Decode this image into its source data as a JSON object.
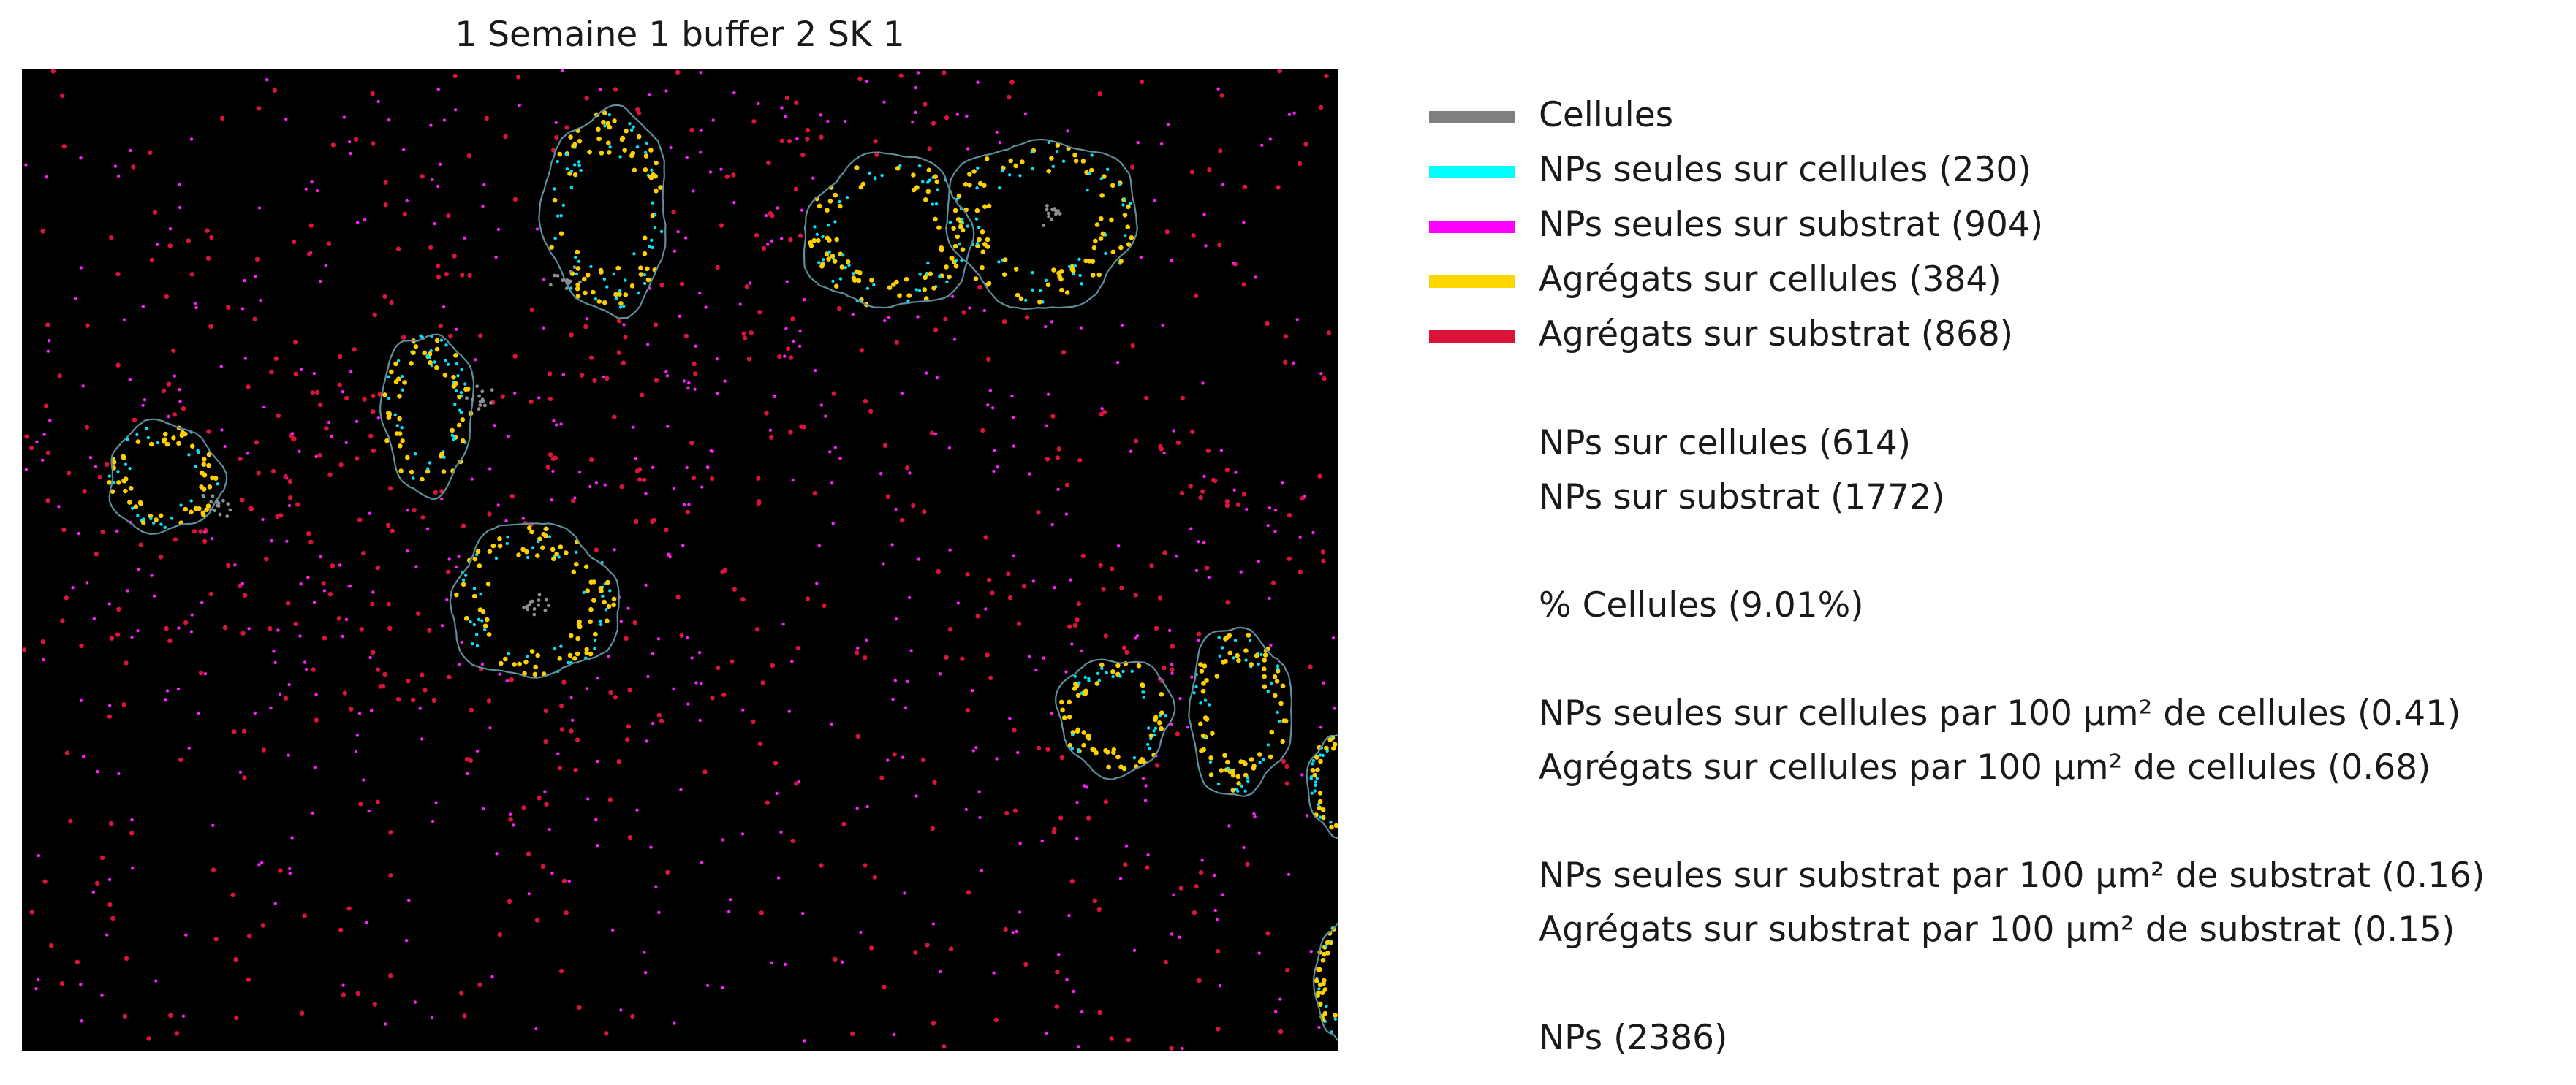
{
  "title": "1 Semaine 1 buffer 2 SK 1",
  "colors": {
    "background": "#000000",
    "cell_outline": "#8a8f93",
    "cell_interior_outline": "#5f8f9b",
    "single_on_cells": "#00e5ff",
    "single_on_substrate": "#ff1fff",
    "aggregates_on_cells": "#ffd000",
    "aggregates_on_substrate": "#dc143c"
  },
  "legend": {
    "items": [
      {
        "label": "Cellules",
        "color": "#808080"
      },
      {
        "label": "NPs seules sur cellules (230)",
        "color": "#00ffff"
      },
      {
        "label": "NPs seules sur substrat (904)",
        "color": "#ff00ff"
      },
      {
        "label": "Agrégats sur cellules (384)",
        "color": "#ffd700"
      },
      {
        "label": "Agrégats sur substrat (868)",
        "color": "#dc143c"
      }
    ],
    "stats": [
      "",
      "NPs sur cellules (614)",
      "NPs sur substrat (1772)",
      "",
      "% Cellules (9.01%)",
      "",
      "NPs seules sur cellules par 100 µm² de cellules (0.41)",
      "Agrégats sur cellules par 100 µm² de cellules (0.68)",
      "",
      "NPs seules sur substrat par 100 µm² de substrat (0.16)",
      "Agrégats sur substrat par 100 µm² de substrat (0.15)",
      "",
      "NPs (2386)"
    ]
  }
}
